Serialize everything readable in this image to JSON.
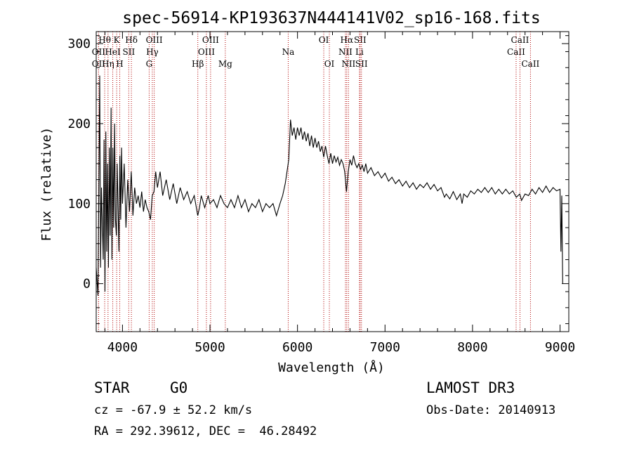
{
  "chart_data": {
    "type": "line",
    "title": "spec-56914-KP193637N444141V02_sp16-168.fits",
    "xlabel": "Wavelength (Å)",
    "ylabel": "Flux (relative)",
    "xlim": [
      3700,
      9100
    ],
    "ylim": [
      -60,
      315
    ],
    "xticks": [
      4000,
      5000,
      6000,
      7000,
      8000,
      9000
    ],
    "yticks": [
      0,
      100,
      200,
      300
    ],
    "x_tick_labels": [
      "4000",
      "5000",
      "6000",
      "7000",
      "8000",
      "9000"
    ],
    "y_tick_labels": [
      "0",
      "100",
      "200",
      "300"
    ],
    "spectral_lines": [
      {
        "name": "OII",
        "wavelength": 3727,
        "row": 2
      },
      {
        "name": "OII",
        "wavelength": 3727,
        "row": 3
      },
      {
        "name": "Hθ",
        "wavelength": 3797,
        "row": 1
      },
      {
        "name": "Hη",
        "wavelength": 3835,
        "row": 3
      },
      {
        "name": "HeI",
        "wavelength": 3889,
        "row": 2
      },
      {
        "name": "K",
        "wavelength": 3934,
        "row": 1
      },
      {
        "name": "H",
        "wavelength": 3969,
        "row": 3
      },
      {
        "name": "SII",
        "wavelength": 4072,
        "row": 2
      },
      {
        "name": "Hδ",
        "wavelength": 4102,
        "row": 1
      },
      {
        "name": "G",
        "wavelength": 4305,
        "row": 3
      },
      {
        "name": "Hγ",
        "wavelength": 4341,
        "row": 2
      },
      {
        "name": "OIII",
        "wavelength": 4363,
        "row": 1
      },
      {
        "name": "Hβ",
        "wavelength": 4861,
        "row": 3
      },
      {
        "name": "OIII",
        "wavelength": 4959,
        "row": 2
      },
      {
        "name": "OIII",
        "wavelength": 5007,
        "row": 1
      },
      {
        "name": "Mg",
        "wavelength": 5175,
        "row": 3
      },
      {
        "name": "Na",
        "wavelength": 5894,
        "row": 2
      },
      {
        "name": "OI",
        "wavelength": 6300,
        "row": 1
      },
      {
        "name": "OI",
        "wavelength": 6364,
        "row": 3
      },
      {
        "name": "NII",
        "wavelength": 6548,
        "row": 2
      },
      {
        "name": "Hα",
        "wavelength": 6563,
        "row": 1
      },
      {
        "name": "NII",
        "wavelength": 6583,
        "row": 3
      },
      {
        "name": "Li",
        "wavelength": 6708,
        "row": 2
      },
      {
        "name": "SII",
        "wavelength": 6716,
        "row": 1
      },
      {
        "name": "SII",
        "wavelength": 6731,
        "row": 3
      },
      {
        "name": "CaII",
        "wavelength": 8498,
        "row": 2
      },
      {
        "name": "CaII",
        "wavelength": 8542,
        "row": 1
      },
      {
        "name": "CaII",
        "wavelength": 8662,
        "row": 3
      }
    ],
    "series": [
      {
        "name": "flux",
        "points": [
          [
            3700,
            20
          ],
          [
            3720,
            -15
          ],
          [
            3740,
            260
          ],
          [
            3750,
            20
          ],
          [
            3760,
            120
          ],
          [
            3780,
            30
          ],
          [
            3790,
            180
          ],
          [
            3800,
            -10
          ],
          [
            3810,
            190
          ],
          [
            3820,
            40
          ],
          [
            3830,
            150
          ],
          [
            3840,
            20
          ],
          [
            3850,
            170
          ],
          [
            3860,
            60
          ],
          [
            3870,
            220
          ],
          [
            3880,
            30
          ],
          [
            3890,
            170
          ],
          [
            3900,
            70
          ],
          [
            3910,
            200
          ],
          [
            3920,
            80
          ],
          [
            3930,
            60
          ],
          [
            3940,
            150
          ],
          [
            3950,
            90
          ],
          [
            3960,
            40
          ],
          [
            3970,
            160
          ],
          [
            3980,
            80
          ],
          [
            3990,
            170
          ],
          [
            4000,
            100
          ],
          [
            4020,
            150
          ],
          [
            4040,
            70
          ],
          [
            4060,
            130
          ],
          [
            4080,
            90
          ],
          [
            4100,
            140
          ],
          [
            4120,
            85
          ],
          [
            4140,
            120
          ],
          [
            4160,
            100
          ],
          [
            4180,
            110
          ],
          [
            4200,
            95
          ],
          [
            4220,
            115
          ],
          [
            4240,
            90
          ],
          [
            4260,
            105
          ],
          [
            4280,
            95
          ],
          [
            4300,
            90
          ],
          [
            4320,
            80
          ],
          [
            4340,
            110
          ],
          [
            4360,
            115
          ],
          [
            4380,
            140
          ],
          [
            4400,
            120
          ],
          [
            4430,
            140
          ],
          [
            4460,
            110
          ],
          [
            4500,
            130
          ],
          [
            4540,
            105
          ],
          [
            4580,
            125
          ],
          [
            4620,
            100
          ],
          [
            4660,
            120
          ],
          [
            4700,
            105
          ],
          [
            4740,
            115
          ],
          [
            4780,
            100
          ],
          [
            4820,
            110
          ],
          [
            4860,
            85
          ],
          [
            4880,
            95
          ],
          [
            4900,
            110
          ],
          [
            4940,
            95
          ],
          [
            4980,
            110
          ],
          [
            5000,
            100
          ],
          [
            5040,
            105
          ],
          [
            5080,
            95
          ],
          [
            5120,
            110
          ],
          [
            5160,
            100
          ],
          [
            5200,
            95
          ],
          [
            5240,
            105
          ],
          [
            5280,
            95
          ],
          [
            5320,
            110
          ],
          [
            5360,
            95
          ],
          [
            5400,
            105
          ],
          [
            5440,
            90
          ],
          [
            5480,
            100
          ],
          [
            5520,
            95
          ],
          [
            5560,
            105
          ],
          [
            5600,
            90
          ],
          [
            5640,
            100
          ],
          [
            5680,
            95
          ],
          [
            5720,
            100
          ],
          [
            5760,
            85
          ],
          [
            5800,
            100
          ],
          [
            5830,
            110
          ],
          [
            5860,
            125
          ],
          [
            5880,
            140
          ],
          [
            5900,
            155
          ],
          [
            5920,
            205
          ],
          [
            5940,
            185
          ],
          [
            5960,
            195
          ],
          [
            5980,
            180
          ],
          [
            6000,
            195
          ],
          [
            6020,
            185
          ],
          [
            6040,
            195
          ],
          [
            6060,
            180
          ],
          [
            6080,
            190
          ],
          [
            6100,
            178
          ],
          [
            6120,
            188
          ],
          [
            6140,
            172
          ],
          [
            6160,
            185
          ],
          [
            6180,
            170
          ],
          [
            6200,
            182
          ],
          [
            6220,
            170
          ],
          [
            6240,
            178
          ],
          [
            6260,
            165
          ],
          [
            6280,
            172
          ],
          [
            6300,
            158
          ],
          [
            6320,
            172
          ],
          [
            6340,
            160
          ],
          [
            6360,
            150
          ],
          [
            6380,
            163
          ],
          [
            6400,
            150
          ],
          [
            6420,
            160
          ],
          [
            6440,
            152
          ],
          [
            6460,
            158
          ],
          [
            6480,
            148
          ],
          [
            6500,
            155
          ],
          [
            6520,
            150
          ],
          [
            6540,
            140
          ],
          [
            6560,
            115
          ],
          [
            6580,
            140
          ],
          [
            6600,
            155
          ],
          [
            6620,
            148
          ],
          [
            6640,
            160
          ],
          [
            6660,
            150
          ],
          [
            6680,
            145
          ],
          [
            6700,
            150
          ],
          [
            6720,
            143
          ],
          [
            6740,
            148
          ],
          [
            6760,
            140
          ],
          [
            6780,
            150
          ],
          [
            6800,
            138
          ],
          [
            6840,
            145
          ],
          [
            6880,
            135
          ],
          [
            6920,
            140
          ],
          [
            6960,
            132
          ],
          [
            7000,
            138
          ],
          [
            7040,
            128
          ],
          [
            7080,
            133
          ],
          [
            7120,
            125
          ],
          [
            7160,
            130
          ],
          [
            7200,
            122
          ],
          [
            7240,
            128
          ],
          [
            7280,
            120
          ],
          [
            7320,
            126
          ],
          [
            7360,
            118
          ],
          [
            7400,
            124
          ],
          [
            7440,
            120
          ],
          [
            7480,
            126
          ],
          [
            7520,
            118
          ],
          [
            7560,
            124
          ],
          [
            7600,
            116
          ],
          [
            7640,
            120
          ],
          [
            7680,
            108
          ],
          [
            7700,
            112
          ],
          [
            7740,
            106
          ],
          [
            7780,
            115
          ],
          [
            7820,
            105
          ],
          [
            7860,
            112
          ],
          [
            7880,
            100
          ],
          [
            7900,
            112
          ],
          [
            7940,
            108
          ],
          [
            7980,
            116
          ],
          [
            8020,
            112
          ],
          [
            8060,
            118
          ],
          [
            8100,
            114
          ],
          [
            8140,
            120
          ],
          [
            8180,
            114
          ],
          [
            8220,
            120
          ],
          [
            8260,
            112
          ],
          [
            8300,
            118
          ],
          [
            8340,
            112
          ],
          [
            8380,
            118
          ],
          [
            8420,
            112
          ],
          [
            8460,
            116
          ],
          [
            8500,
            108
          ],
          [
            8540,
            112
          ],
          [
            8560,
            104
          ],
          [
            8600,
            112
          ],
          [
            8640,
            110
          ],
          [
            8680,
            118
          ],
          [
            8720,
            112
          ],
          [
            8760,
            120
          ],
          [
            8800,
            114
          ],
          [
            8840,
            122
          ],
          [
            8880,
            114
          ],
          [
            8920,
            120
          ],
          [
            8960,
            116
          ],
          [
            9000,
            118
          ],
          [
            9010,
            40
          ],
          [
            9020,
            110
          ],
          [
            9030,
            0
          ]
        ]
      }
    ]
  },
  "info": {
    "object_class": "STAR",
    "subclass": "G0",
    "survey": "LAMOST DR3",
    "redshift": "cz = -67.9 ± 52.2 km/s",
    "obs_date": "Obs-Date: 20140913",
    "coords": "RA = 292.39612, DEC =  46.28492"
  }
}
